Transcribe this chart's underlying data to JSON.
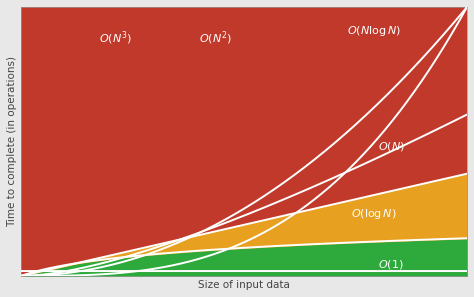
{
  "title": "",
  "xlabel": "Size of input data",
  "ylabel": "Time to complete (in operations)",
  "color_red": "#c0392b",
  "color_orange": "#e8a020",
  "color_green": "#2eaa3c",
  "color_white": "#ffffff",
  "fig_bg": "#e8e8e8",
  "xmax": 10,
  "ymax": 10,
  "curve_scale": {
    "O1_scale": 0.01,
    "OlogN_k": 0.38,
    "ON_k": 0.1,
    "ONlogN_k": 0.12,
    "ON2_k": 0.1,
    "ON3_k": 0.1
  }
}
